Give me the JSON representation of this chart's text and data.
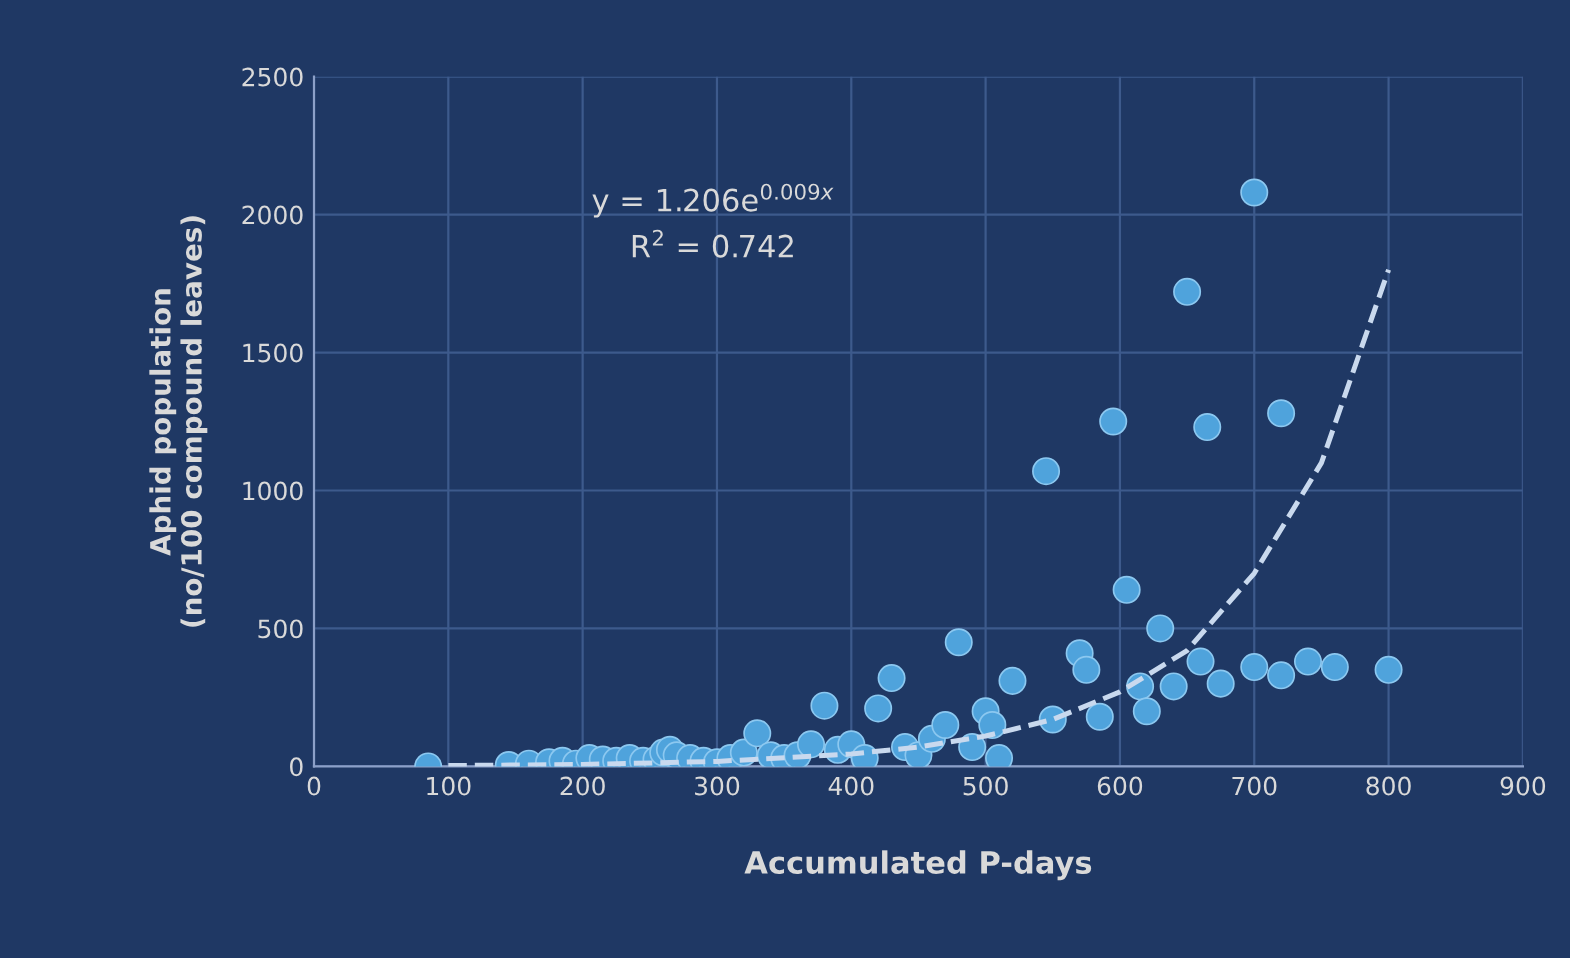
{
  "chart_data": {
    "type": "scatter",
    "xlabel": "Accumulated P-days",
    "ylabel": "Aphid population\n(no/100 compound leaves)",
    "xlim": [
      0,
      900
    ],
    "xticks": [
      0,
      100,
      200,
      300,
      400,
      500,
      600,
      700,
      800,
      900
    ],
    "ylim": [
      0,
      2500
    ],
    "yticks": [
      0,
      500,
      1000,
      1500,
      2000,
      2500
    ],
    "grid": true,
    "annotations": [
      "y = 1.206e$^{0.009x}$",
      "R$^{2}$ = 0.742"
    ],
    "series": [
      {
        "marker": "circle",
        "color": "#4fa3dc",
        "x": [
          85,
          145,
          160,
          175,
          185,
          195,
          205,
          215,
          225,
          235,
          245,
          255,
          260,
          265,
          270,
          280,
          290,
          300,
          310,
          320,
          330,
          340,
          350,
          360,
          370,
          380,
          390,
          400,
          410,
          420,
          430,
          440,
          450,
          460,
          470,
          480,
          490,
          500,
          505,
          510,
          520,
          545,
          550,
          570,
          575,
          585,
          595,
          605,
          615,
          620,
          630,
          640,
          650,
          660,
          665,
          675,
          700,
          700,
          720,
          720,
          740,
          760,
          800
        ],
        "values": [
          0,
          5,
          10,
          15,
          20,
          10,
          30,
          25,
          20,
          30,
          20,
          25,
          50,
          60,
          40,
          30,
          20,
          15,
          30,
          50,
          120,
          40,
          30,
          40,
          80,
          220,
          60,
          80,
          30,
          210,
          320,
          70,
          40,
          100,
          150,
          450,
          70,
          200,
          150,
          30,
          310,
          1070,
          170,
          410,
          350,
          180,
          1250,
          640,
          290,
          200,
          500,
          290,
          1720,
          380,
          1230,
          300,
          360,
          2080,
          330,
          1280,
          380,
          360,
          350
        ]
      },
      {
        "type": "line",
        "line_style": "dashed",
        "color": "#c9d9ee",
        "x": [
          100,
          200,
          300,
          400,
          450,
          500,
          550,
          600,
          650,
          700,
          750,
          800
        ],
        "values": [
          3,
          7,
          18,
          45,
          70,
          110,
          170,
          270,
          420,
          700,
          1100,
          1800
        ]
      }
    ]
  }
}
